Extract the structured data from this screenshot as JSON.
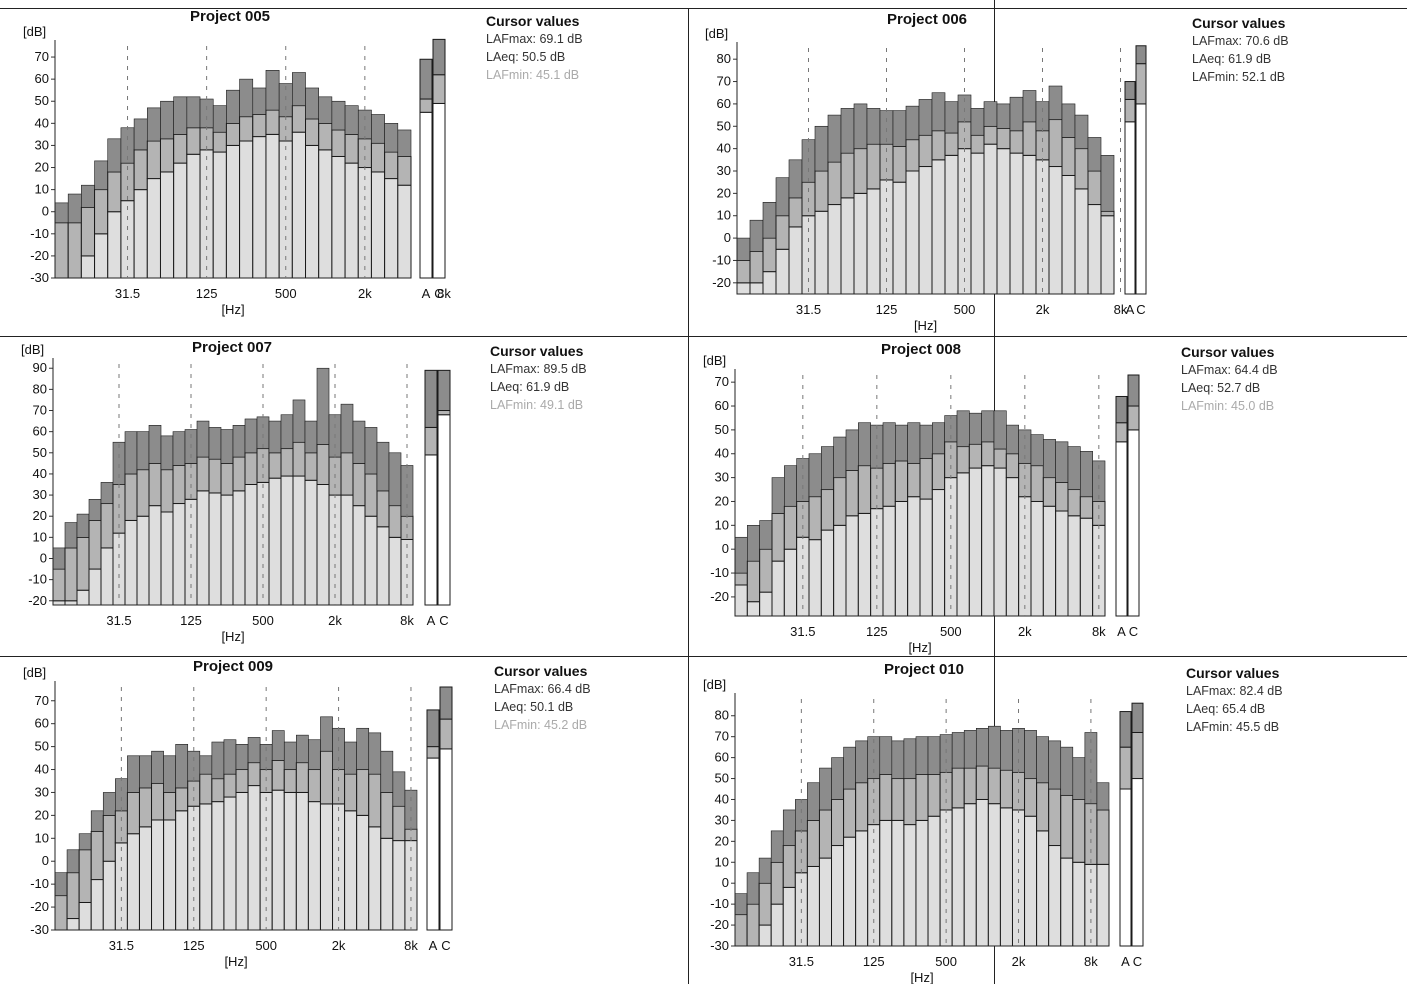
{
  "colors": {
    "max_band": "#8c8c8c",
    "eq_band": "#b4b4b4",
    "min_band": "#dedede",
    "bar_outline": "#1a1a1a",
    "grid": "#777777"
  },
  "cursor_title": "Cursor values",
  "chart_data": [
    {
      "type": "bar",
      "title": "Project 005",
      "ylabel": "[dB]",
      "xlabel": "[Hz]",
      "ylim": [
        -30,
        75
      ],
      "yticks": [
        -30,
        -20,
        -10,
        0,
        10,
        20,
        30,
        40,
        50,
        60,
        70
      ],
      "ytick_labels": [
        "-30",
        "-20",
        "-10",
        "0",
        "10",
        "20",
        "30",
        "40",
        "50",
        "60",
        "70"
      ],
      "xtick_labels": [
        "31.5",
        "125",
        "500",
        "2k",
        "8k"
      ],
      "xtick_bands": [
        5,
        11,
        17,
        23,
        29
      ],
      "ac_labels": [
        "A",
        "C"
      ],
      "lmax": [
        4,
        8,
        12,
        23,
        33,
        38,
        42,
        47,
        50,
        52,
        52,
        51,
        48,
        55,
        60,
        56,
        64,
        58,
        63,
        56,
        52,
        50,
        48,
        46,
        44,
        40,
        37
      ],
      "leq": [
        -5,
        -5,
        2,
        10,
        18,
        22,
        28,
        32,
        33,
        35,
        38,
        38,
        36,
        40,
        43,
        44,
        46,
        43,
        48,
        42,
        40,
        37,
        35,
        33,
        31,
        27,
        25
      ],
      "lmin": [
        -30,
        -30,
        -20,
        -10,
        0,
        5,
        10,
        15,
        18,
        22,
        26,
        28,
        27,
        30,
        32,
        34,
        35,
        32,
        36,
        30,
        28,
        25,
        22,
        20,
        18,
        15,
        12
      ],
      "ac": {
        "lmax": [
          69,
          78
        ],
        "leq": [
          51,
          62
        ],
        "lmin": [
          45,
          49
        ]
      },
      "cursor": {
        "lmax": "LAFmax: 69.1 dB",
        "leq": "LAeq: 50.5 dB",
        "lmin": "LAFmin: 45.1 dB"
      }
    },
    {
      "type": "bar",
      "title": "Project 006",
      "ylabel": "[dB]",
      "xlabel": "[Hz]",
      "ylim": [
        -25,
        85
      ],
      "yticks": [
        -20,
        -10,
        0,
        10,
        20,
        30,
        40,
        50,
        60,
        70,
        80
      ],
      "ytick_labels": [
        "-20",
        "-10",
        "0",
        "10",
        "20",
        "30",
        "40",
        "50",
        "60",
        "70",
        "80"
      ],
      "xtick_labels": [
        "31.5",
        "125",
        "500",
        "2k",
        "8k"
      ],
      "xtick_bands": [
        5,
        11,
        17,
        23,
        29
      ],
      "ac_labels": [
        "A",
        "C"
      ],
      "lmax": [
        0,
        8,
        16,
        27,
        35,
        44,
        50,
        55,
        58,
        60,
        58,
        57,
        57,
        59,
        62,
        65,
        61,
        64,
        58,
        61,
        60,
        63,
        66,
        61,
        68,
        60,
        55,
        45,
        37
      ],
      "leq": [
        -10,
        -6,
        0,
        10,
        18,
        25,
        30,
        34,
        38,
        40,
        42,
        42,
        41,
        44,
        46,
        48,
        47,
        52,
        46,
        50,
        49,
        48,
        52,
        48,
        53,
        45,
        40,
        30,
        12
      ],
      "lmin": [
        -20,
        -20,
        -15,
        -5,
        5,
        10,
        12,
        15,
        18,
        20,
        22,
        26,
        25,
        30,
        32,
        35,
        37,
        40,
        38,
        42,
        40,
        38,
        37,
        35,
        32,
        28,
        22,
        15,
        10
      ],
      "ac": {
        "lmax": [
          70,
          86
        ],
        "leq": [
          62,
          78
        ],
        "lmin": [
          52,
          60
        ]
      },
      "cursor": {
        "lmax": "LAFmax: 70.6 dB",
        "leq": "LAeq: 61.9 dB",
        "lmin": "LAFmin: 52.1 dB"
      }
    },
    {
      "type": "bar",
      "title": "Project 007",
      "ylabel": "[dB]",
      "xlabel": "[Hz]",
      "ylim": [
        -22,
        92
      ],
      "yticks": [
        -20,
        -10,
        0,
        10,
        20,
        30,
        40,
        50,
        60,
        70,
        80,
        90
      ],
      "ytick_labels": [
        "-20",
        "-10",
        "0",
        "10",
        "20",
        "30",
        "40",
        "50",
        "60",
        "70",
        "80",
        "90"
      ],
      "xtick_labels": [
        "31.5",
        "125",
        "500",
        "2k",
        "8k"
      ],
      "xtick_bands": [
        5,
        11,
        17,
        23,
        29
      ],
      "ac_labels": [
        "A",
        "C"
      ],
      "lmax": [
        5,
        17,
        21,
        28,
        36,
        55,
        60,
        60,
        63,
        58,
        60,
        61,
        65,
        62,
        61,
        63,
        66,
        67,
        65,
        68,
        75,
        65,
        90,
        68,
        73,
        65,
        62,
        55,
        50,
        44
      ],
      "leq": [
        -5,
        5,
        10,
        18,
        26,
        35,
        40,
        42,
        45,
        42,
        44,
        45,
        48,
        47,
        45,
        48,
        50,
        52,
        50,
        52,
        55,
        50,
        54,
        48,
        50,
        45,
        40,
        32,
        25,
        20
      ],
      "lmin": [
        -20,
        -20,
        -15,
        -5,
        5,
        12,
        18,
        20,
        25,
        22,
        26,
        28,
        32,
        31,
        30,
        32,
        35,
        36,
        38,
        39,
        39,
        37,
        35,
        30,
        30,
        25,
        20,
        15,
        10,
        9
      ],
      "ac": {
        "lmax": [
          89,
          89
        ],
        "leq": [
          62,
          70
        ],
        "lmin": [
          49,
          68
        ]
      },
      "cursor": {
        "lmax": "LAFmax: 89.5 dB",
        "leq": "LAeq: 61.9 dB",
        "lmin": "LAFmin: 49.1 dB"
      }
    },
    {
      "type": "bar",
      "title": "Project 008",
      "ylabel": "[dB]",
      "xlabel": "[Hz]",
      "ylim": [
        -28,
        73
      ],
      "yticks": [
        -20,
        -10,
        0,
        10,
        20,
        30,
        40,
        50,
        60,
        70
      ],
      "ytick_labels": [
        "-20",
        "-10",
        "0",
        "10",
        "20",
        "30",
        "40",
        "50",
        "60",
        "70"
      ],
      "xtick_labels": [
        "31.5",
        "125",
        "500",
        "2k",
        "8k"
      ],
      "xtick_bands": [
        5,
        11,
        17,
        23,
        29
      ],
      "ac_labels": [
        "A",
        "C"
      ],
      "lmax": [
        5,
        10,
        12,
        30,
        35,
        38,
        40,
        43,
        47,
        50,
        53,
        52,
        53,
        52,
        53,
        52,
        53,
        56,
        58,
        57,
        58,
        58,
        52,
        50,
        48,
        46,
        45,
        43,
        41,
        37
      ],
      "leq": [
        -10,
        -5,
        0,
        15,
        18,
        20,
        22,
        25,
        30,
        33,
        35,
        34,
        36,
        37,
        36,
        38,
        40,
        45,
        43,
        44,
        45,
        42,
        40,
        36,
        35,
        30,
        28,
        25,
        22,
        20
      ],
      "lmin": [
        -15,
        -22,
        -18,
        -5,
        0,
        5,
        4,
        8,
        10,
        14,
        15,
        17,
        18,
        20,
        22,
        21,
        25,
        30,
        32,
        34,
        35,
        34,
        30,
        22,
        20,
        18,
        16,
        14,
        13,
        10
      ],
      "ac": {
        "lmax": [
          64,
          73
        ],
        "leq": [
          53,
          60
        ],
        "lmin": [
          45,
          50
        ]
      },
      "cursor": {
        "lmax": "LAFmax: 64.4 dB",
        "leq": "LAeq: 52.7 dB",
        "lmin": "LAFmin: 45.0 dB"
      }
    },
    {
      "type": "bar",
      "title": "Project 009",
      "ylabel": "[dB]",
      "xlabel": "[Hz]",
      "ylim": [
        -30,
        76
      ],
      "yticks": [
        -30,
        -20,
        -10,
        0,
        10,
        20,
        30,
        40,
        50,
        60,
        70
      ],
      "ytick_labels": [
        "-30",
        "-20",
        "-10",
        "0",
        "10",
        "20",
        "30",
        "40",
        "50",
        "60",
        "70"
      ],
      "xtick_labels": [
        "31.5",
        "125",
        "500",
        "2k",
        "8k"
      ],
      "xtick_bands": [
        5,
        11,
        17,
        23,
        29
      ],
      "ac_labels": [
        "A",
        "C"
      ],
      "lmax": [
        -5,
        5,
        12,
        22,
        30,
        36,
        46,
        46,
        48,
        46,
        51,
        48,
        46,
        52,
        53,
        51,
        54,
        51,
        57,
        52,
        55,
        53,
        63,
        58,
        52,
        58,
        56,
        48,
        39,
        31
      ],
      "leq": [
        -15,
        -5,
        5,
        13,
        20,
        22,
        30,
        32,
        34,
        30,
        32,
        35,
        38,
        36,
        38,
        40,
        43,
        40,
        44,
        40,
        43,
        40,
        48,
        40,
        38,
        40,
        38,
        30,
        24,
        14
      ],
      "lmin": [
        -30,
        -25,
        -18,
        -8,
        0,
        8,
        12,
        15,
        18,
        18,
        22,
        24,
        25,
        26,
        28,
        30,
        33,
        30,
        31,
        30,
        30,
        26,
        25,
        25,
        22,
        20,
        15,
        10,
        9,
        9
      ],
      "ac": {
        "lmax": [
          66,
          76
        ],
        "leq": [
          50,
          62
        ],
        "lmin": [
          45,
          49
        ]
      },
      "cursor": {
        "lmax": "LAFmax: 66.4 dB",
        "leq": "LAeq: 50.1 dB",
        "lmin": "LAFmin: 45.2 dB"
      }
    },
    {
      "type": "bar",
      "title": "Project 010",
      "ylabel": "[dB]",
      "xlabel": "[Hz]",
      "ylim": [
        -30,
        88
      ],
      "yticks": [
        -30,
        -20,
        -10,
        0,
        10,
        20,
        30,
        40,
        50,
        60,
        70,
        80
      ],
      "ytick_labels": [
        "-30",
        "-20",
        "-10",
        "0",
        "10",
        "20",
        "30",
        "40",
        "50",
        "60",
        "70",
        "80"
      ],
      "xtick_labels": [
        "31.5",
        "125",
        "500",
        "2k",
        "8k"
      ],
      "xtick_bands": [
        5,
        11,
        17,
        23,
        29
      ],
      "ac_labels": [
        "A",
        "C"
      ],
      "lmax": [
        -5,
        5,
        12,
        25,
        35,
        40,
        48,
        55,
        60,
        65,
        68,
        70,
        70,
        68,
        69,
        70,
        70,
        71,
        72,
        73,
        74,
        75,
        73,
        74,
        73,
        70,
        68,
        65,
        60,
        72,
        48
      ],
      "leq": [
        -15,
        -10,
        0,
        10,
        18,
        25,
        30,
        35,
        40,
        45,
        48,
        50,
        52,
        50,
        50,
        52,
        52,
        53,
        55,
        55,
        56,
        55,
        54,
        53,
        50,
        48,
        45,
        42,
        40,
        38,
        35
      ],
      "lmin": [
        -30,
        -30,
        -20,
        -10,
        -2,
        5,
        8,
        12,
        18,
        22,
        25,
        28,
        30,
        30,
        28,
        30,
        32,
        35,
        36,
        38,
        40,
        38,
        36,
        35,
        32,
        25,
        18,
        12,
        10,
        9,
        9
      ],
      "ac": {
        "lmax": [
          82,
          86
        ],
        "leq": [
          65,
          72
        ],
        "lmin": [
          45,
          50
        ]
      },
      "cursor": {
        "lmax": "LAFmax: 82.4 dB",
        "leq": "LAeq: 65.4 dB",
        "lmin": "LAFmin: 45.5 dB"
      }
    }
  ]
}
